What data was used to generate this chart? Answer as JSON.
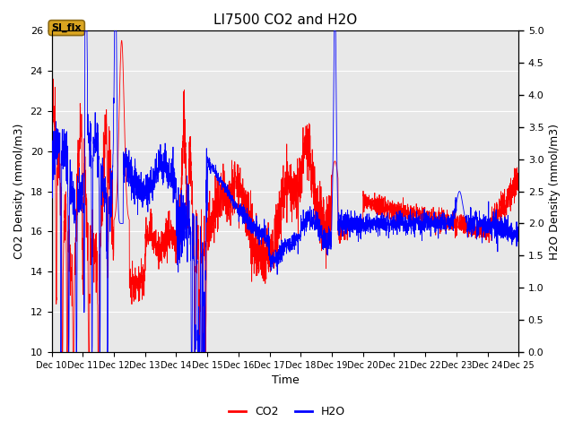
{
  "title": "LI7500 CO2 and H2O",
  "xlabel": "Time",
  "ylabel_left": "CO2 Density (mmol/m3)",
  "ylabel_right": "H2O Density (mmol/m3)",
  "co2_color": "#FF0000",
  "h2o_color": "#0000FF",
  "ylim_left": [
    10,
    26
  ],
  "ylim_right": [
    0.0,
    5.0
  ],
  "yticks_left": [
    10,
    12,
    14,
    16,
    18,
    20,
    22,
    24,
    26
  ],
  "yticks_right": [
    0.0,
    0.5,
    1.0,
    1.5,
    2.0,
    2.5,
    3.0,
    3.5,
    4.0,
    4.5,
    5.0
  ],
  "xtick_labels": [
    "Dec 10",
    "Dec 11",
    "Dec 12",
    "Dec 13",
    "Dec 14",
    "Dec 15",
    "Dec 16",
    "Dec 17",
    "Dec 18",
    "Dec 19",
    "Dec 20",
    "Dec 21",
    "Dec 22",
    "Dec 23",
    "Dec 24",
    "Dec 25"
  ],
  "bg_color": "#E8E8E8",
  "annotation_text": "SI_flx",
  "annotation_facecolor": "#DAA520",
  "legend_co2": "CO2",
  "legend_h2o": "H2O",
  "figsize": [
    6.4,
    4.8
  ],
  "dpi": 100
}
